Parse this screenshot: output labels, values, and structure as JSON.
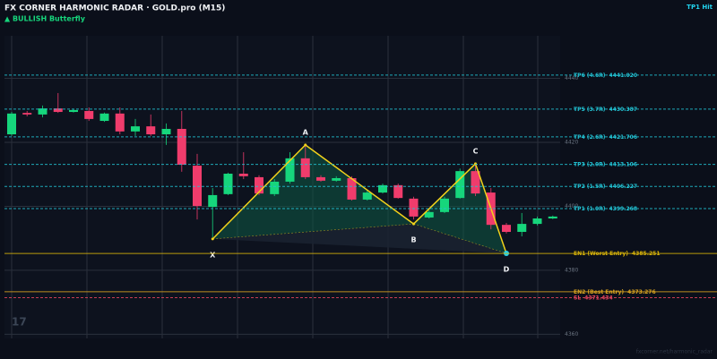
{
  "chart_data": {
    "type": "candlestick",
    "title": "FX CORNER HARMONIC RADAR  ·  GOLD.pro (M15)",
    "subtitle": "▲ BULLISH  Butterfly",
    "status": "TP1 Hit",
    "watermark": "17",
    "footer": "fxcorner.net/harmonic_radar",
    "ylim": [
      4358.7,
      4453.3
    ],
    "yticks": [
      4360,
      4380,
      4400,
      4420,
      4440
    ],
    "grid": true,
    "up_color": "#16d67c",
    "down_color": "#f03c6c",
    "candles": {
      "open": [
        4422.5,
        4429.2,
        4428.7,
        4430.6,
        4429.5,
        4429.8,
        4426.7,
        4429.0,
        4423.4,
        4425.0,
        4422.5,
        4424.2,
        4412.7,
        4399.8,
        4403.8,
        4410.2,
        4409.1,
        4403.8,
        4407.7,
        4415.0,
        4409.1,
        4408.0,
        4408.8,
        4402.1,
        4404.3,
        4406.6,
        4402.4,
        4396.5,
        4398.2,
        4402.6,
        4411.0,
        4404.3,
        4394.2,
        4392.0,
        4394.5,
        4396.2
      ],
      "high": [
        4429.5,
        4429.8,
        4431.5,
        4435.4,
        4430.3,
        4430.9,
        4429.3,
        4430.9,
        4427.3,
        4428.7,
        4425.9,
        4429.8,
        4416.4,
        4405.7,
        4410.5,
        4416.9,
        4409.7,
        4408.5,
        4416.9,
        4418.9,
        4409.7,
        4409.4,
        4409.4,
        4404.9,
        4407.1,
        4407.1,
        4403.0,
        4398.8,
        4403.0,
        4411.8,
        4413.3,
        4405.7,
        4394.8,
        4397.9,
        4396.8,
        4397.1
      ],
      "low": [
        4422.0,
        4428.1,
        4427.8,
        4429.2,
        4429.3,
        4426.7,
        4426.4,
        4422.5,
        4422.0,
        4422.0,
        4419.2,
        4410.8,
        4395.9,
        4390.3,
        4403.5,
        4408.5,
        4403.5,
        4403.2,
        4407.1,
        4408.5,
        4407.7,
        4407.7,
        4401.8,
        4401.8,
        4404.0,
        4402.4,
        4395.9,
        4396.2,
        4397.9,
        4402.4,
        4403.2,
        4392.8,
        4391.5,
        4390.6,
        4394.0,
        4396.0
      ],
      "close": [
        4429.0,
        4428.7,
        4430.6,
        4429.5,
        4430.1,
        4427.3,
        4429.0,
        4423.4,
        4425.0,
        4422.5,
        4424.2,
        4413.0,
        4400.1,
        4403.5,
        4410.2,
        4409.4,
        4404.0,
        4407.7,
        4415.0,
        4409.1,
        4408.0,
        4408.8,
        4402.1,
        4404.3,
        4406.6,
        4402.6,
        4396.8,
        4398.2,
        4402.4,
        4411.0,
        4404.0,
        4394.2,
        4392.0,
        4394.5,
        4396.2,
        4396.8
      ]
    },
    "pattern": {
      "color": "#f2d21b",
      "fill": "#0f5a45",
      "completion_color": "#22d3ee",
      "points": [
        {
          "label": "X",
          "index": 13,
          "price": 4389.8
        },
        {
          "label": "A",
          "index": 19,
          "price": 4419.2
        },
        {
          "label": "B",
          "index": 26,
          "price": 4394.5
        },
        {
          "label": "C",
          "index": 30,
          "price": 4413.3
        },
        {
          "label": "D",
          "index": 32,
          "price": 4385.3
        }
      ]
    },
    "levels": [
      {
        "label": "TP6 (4.6R)",
        "value": 4441.02,
        "value_label": "4441.020",
        "color": "#22c3d4",
        "dashed": true
      },
      {
        "label": "TP5 (3.7R)",
        "value": 4430.387,
        "color": "#22c3d4",
        "dashed": true
      },
      {
        "label": "TP4 (2.6R)",
        "value": 4421.706,
        "color": "#22c3d4",
        "dashed": true
      },
      {
        "label": "TP3 (2.0R)",
        "value": 4413.106,
        "color": "#22c3d4",
        "dashed": true
      },
      {
        "label": "TP2 (1.5R)",
        "value": 4406.227,
        "color": "#22c3d4",
        "dashed": true
      },
      {
        "label": "TP1 (1.0R)",
        "value": 4399.268,
        "color": "#22c3d4",
        "dashed": true
      },
      {
        "label": "EN1 (Worst Entry)",
        "value": 4385.251,
        "color": "#d8b309",
        "dashed": false
      },
      {
        "label": "EN2 (Best Entry)",
        "value": 4373.276,
        "color": "#d9a31f",
        "dashed": false
      },
      {
        "label": "SL",
        "value": 4371.434,
        "color": "#e8455e",
        "dashed": true
      }
    ]
  }
}
